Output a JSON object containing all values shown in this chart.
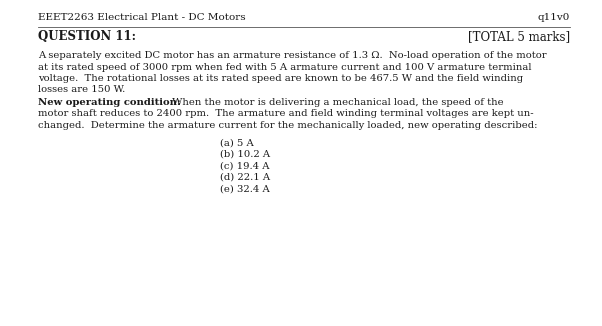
{
  "header_left": "EEET2263 Electrical Plant - DC Motors",
  "header_right": "q11v0",
  "question_label": "QUESTION 11:",
  "total_marks": "[TOTAL 5 marks]",
  "body_lines": [
    "A separately excited DC motor has an armature resistance of 1.3 Ω.  No-load operation of the motor",
    "at its rated speed of 3000 rpm when fed with 5 A armature current and 100 V armature terminal",
    "voltage.  The rotational losses at its rated speed are known to be 467.5 W and the field winding",
    "losses are 150 W."
  ],
  "bold_label": "New operating condition:",
  "bold_cont_line1": " When the motor is delivering a mechanical load, the speed of the",
  "new_op_lines": [
    "motor shaft reduces to 2400 rpm.  The armature and field winding terminal voltages are kept un-",
    "changed.  Determine the armature current for the mechanically loaded, new operating described:"
  ],
  "options": [
    "(a) 5 A",
    "(b) 10.2 A",
    "(c) 19.4 A",
    "(d) 22.1 A",
    "(e) 32.4 A"
  ],
  "bg_color": "#ffffff",
  "text_color": "#1a1a1a",
  "line_color": "#555555",
  "fs_header": 7.5,
  "fs_question": 8.5,
  "fs_body": 7.2,
  "fs_options": 7.2
}
